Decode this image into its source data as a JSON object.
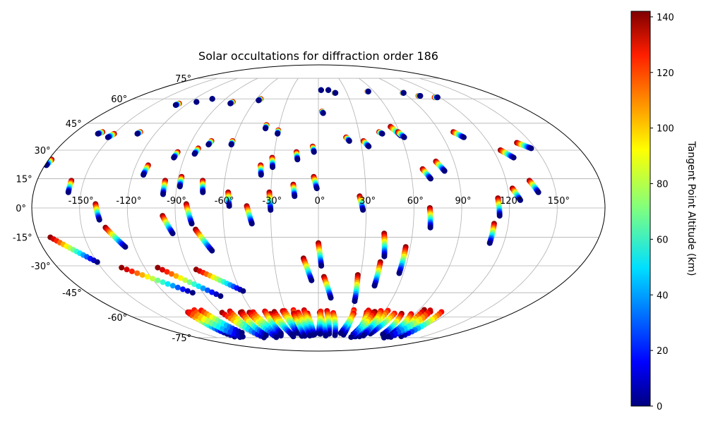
{
  "chart_data": {
    "type": "scatter",
    "projection": "mollweide",
    "title": "Solar occultations for diffraction order 186",
    "colorbar": {
      "label": "Tangent Point Altitude (km)",
      "min": 0,
      "max": 142,
      "ticks": [
        0,
        20,
        40,
        60,
        80,
        100,
        120,
        140
      ],
      "colormap": "jet"
    },
    "lon_ticks": [
      -150,
      -120,
      -90,
      -60,
      -30,
      0,
      30,
      60,
      90,
      120,
      150
    ],
    "lon_tick_labels": [
      "-150°",
      "-120°",
      "-90°",
      "-60°",
      "-30°",
      "0°",
      "30°",
      "60°",
      "90°",
      "120°",
      "150°"
    ],
    "lat_ticks": [
      -75,
      -60,
      -45,
      -30,
      -15,
      0,
      15,
      30,
      45,
      60,
      75
    ],
    "lat_tick_labels": [
      "-75°",
      "-60°",
      "-45°",
      "-30°",
      "-15°",
      "0°",
      "15°",
      "30°",
      "45°",
      "60°",
      "75°"
    ],
    "tracks": [
      {
        "start": [
          -178,
          25
        ],
        "end": [
          -179,
          22
        ]
      },
      {
        "start": [
          -158,
          14
        ],
        "end": [
          -158,
          8
        ]
      },
      {
        "start": [
          -160,
          40
        ],
        "end": [
          -162,
          39
        ]
      },
      {
        "start": [
          -150,
          39
        ],
        "end": [
          -152,
          37
        ]
      },
      {
        "start": [
          -132,
          40
        ],
        "end": [
          -133,
          39
        ]
      },
      {
        "start": [
          -128,
          57
        ],
        "end": [
          -129,
          56
        ]
      },
      {
        "start": [
          -114,
          58
        ],
        "end": [
          -114,
          58
        ]
      },
      {
        "start": [
          -103,
          60
        ],
        "end": [
          -103,
          60
        ]
      },
      {
        "start": [
          -112,
          22
        ],
        "end": [
          -113,
          17
        ]
      },
      {
        "start": [
          -98,
          14
        ],
        "end": [
          -98,
          7
        ]
      },
      {
        "start": [
          -96,
          29
        ],
        "end": [
          -97,
          26
        ]
      },
      {
        "start": [
          -88,
          16
        ],
        "end": [
          -88,
          11
        ]
      },
      {
        "start": [
          -83,
          31
        ],
        "end": [
          -84,
          28
        ]
      },
      {
        "start": [
          -76,
          35
        ],
        "end": [
          -77,
          33
        ]
      },
      {
        "start": [
          -80,
          58
        ],
        "end": [
          -81,
          57
        ]
      },
      {
        "start": [
          -74,
          14
        ],
        "end": [
          -73,
          8
        ]
      },
      {
        "start": [
          -61,
          35
        ],
        "end": [
          -61,
          33
        ]
      },
      {
        "start": [
          -57,
          8
        ],
        "end": [
          -56,
          1
        ]
      },
      {
        "start": [
          -56,
          60
        ],
        "end": [
          -57,
          59
        ]
      },
      {
        "start": [
          -40,
          44
        ],
        "end": [
          -40,
          42
        ]
      },
      {
        "start": [
          -38,
          22
        ],
        "end": [
          -37,
          17
        ]
      },
      {
        "start": [
          -30,
          41
        ],
        "end": [
          -30,
          39
        ]
      },
      {
        "start": [
          -31,
          26
        ],
        "end": [
          -30,
          21
        ]
      },
      {
        "start": [
          -31,
          8
        ],
        "end": [
          -30,
          -1
        ]
      },
      {
        "start": [
          -15,
          29
        ],
        "end": [
          -14,
          25
        ]
      },
      {
        "start": [
          -16,
          12
        ],
        "end": [
          -15,
          6
        ]
      },
      {
        "start": [
          -4,
          32
        ],
        "end": [
          -3,
          29
        ]
      },
      {
        "start": [
          -3,
          16
        ],
        "end": [
          -1,
          10
        ]
      },
      {
        "start": [
          3,
          66
        ],
        "end": [
          3,
          66
        ]
      },
      {
        "start": [
          11,
          66
        ],
        "end": [
          11,
          66
        ]
      },
      {
        "start": [
          17,
          64
        ],
        "end": [
          18,
          64
        ]
      },
      {
        "start": [
          3,
          52
        ],
        "end": [
          4,
          51
        ]
      },
      {
        "start": [
          20,
          37
        ],
        "end": [
          22,
          35
        ]
      },
      {
        "start": [
          32,
          35
        ],
        "end": [
          35,
          32
        ]
      },
      {
        "start": [
          26,
          6
        ],
        "end": [
          28,
          -1
        ]
      },
      {
        "start": [
          45,
          40
        ],
        "end": [
          47,
          39
        ]
      },
      {
        "start": [
          55,
          43
        ],
        "end": [
          60,
          38
        ]
      },
      {
        "start": [
          59,
          40
        ],
        "end": [
          62,
          37
        ]
      },
      {
        "start": [
          53,
          65
        ],
        "end": [
          54,
          65
        ]
      },
      {
        "start": [
          89,
          64
        ],
        "end": [
          90,
          64
        ]
      },
      {
        "start": [
          101,
          62
        ],
        "end": [
          103,
          62
        ]
      },
      {
        "start": [
          115,
          61
        ],
        "end": [
          118,
          61
        ]
      },
      {
        "start": [
          100,
          40
        ],
        "end": [
          105,
          37
        ]
      },
      {
        "start": [
          68,
          20
        ],
        "end": [
          72,
          15
        ]
      },
      {
        "start": [
          78,
          24
        ],
        "end": [
          82,
          19
        ]
      },
      {
        "start": [
          70,
          0
        ],
        "end": [
          71,
          -10
        ]
      },
      {
        "start": [
          113,
          5
        ],
        "end": [
          114,
          -4
        ]
      },
      {
        "start": [
          111,
          -8
        ],
        "end": [
          111,
          -18
        ]
      },
      {
        "start": [
          125,
          30
        ],
        "end": [
          131,
          26
        ]
      },
      {
        "start": [
          123,
          10
        ],
        "end": [
          127,
          4
        ]
      },
      {
        "start": [
          140,
          34
        ],
        "end": [
          147,
          31
        ]
      },
      {
        "start": [
          135,
          14
        ],
        "end": [
          139,
          8
        ]
      },
      {
        "start": [
          -140,
          2
        ],
        "end": [
          -138,
          -6
        ]
      },
      {
        "start": [
          -135,
          -10
        ],
        "end": [
          -126,
          -20
        ]
      },
      {
        "start": [
          -98,
          -4
        ],
        "end": [
          -93,
          -13
        ]
      },
      {
        "start": [
          -83,
          2
        ],
        "end": [
          -80,
          -8
        ]
      },
      {
        "start": [
          -78,
          -11
        ],
        "end": [
          -70,
          -22
        ]
      },
      {
        "start": [
          -45,
          1
        ],
        "end": [
          -42,
          -8
        ]
      },
      {
        "start": [
          -172,
          -15
        ],
        "end": [
          -150,
          -28
        ]
      },
      {
        "start": [
          -136,
          -31
        ],
        "end": [
          -98,
          -45
        ]
      },
      {
        "start": [
          -111,
          -31
        ],
        "end": [
          -78,
          -47
        ]
      },
      {
        "start": [
          -85,
          -32
        ],
        "end": [
          -58,
          -44
        ]
      },
      {
        "start": [
          -10,
          -26
        ],
        "end": [
          -5,
          -38
        ]
      },
      {
        "start": [
          0,
          -18
        ],
        "end": [
          2,
          -30
        ]
      },
      {
        "start": [
          4,
          -36
        ],
        "end": [
          10,
          -48
        ]
      },
      {
        "start": [
          28,
          -35
        ],
        "end": [
          30,
          -50
        ]
      },
      {
        "start": [
          42,
          -13
        ],
        "end": [
          44,
          -25
        ]
      },
      {
        "start": [
          42,
          -28
        ],
        "end": [
          42,
          -41
        ]
      },
      {
        "start": [
          57,
          -20
        ],
        "end": [
          57,
          -34
        ]
      }
    ],
    "south_cluster": {
      "lat_range": [
        -75,
        -55
      ],
      "lon_range": [
        -120,
        120
      ]
    }
  }
}
